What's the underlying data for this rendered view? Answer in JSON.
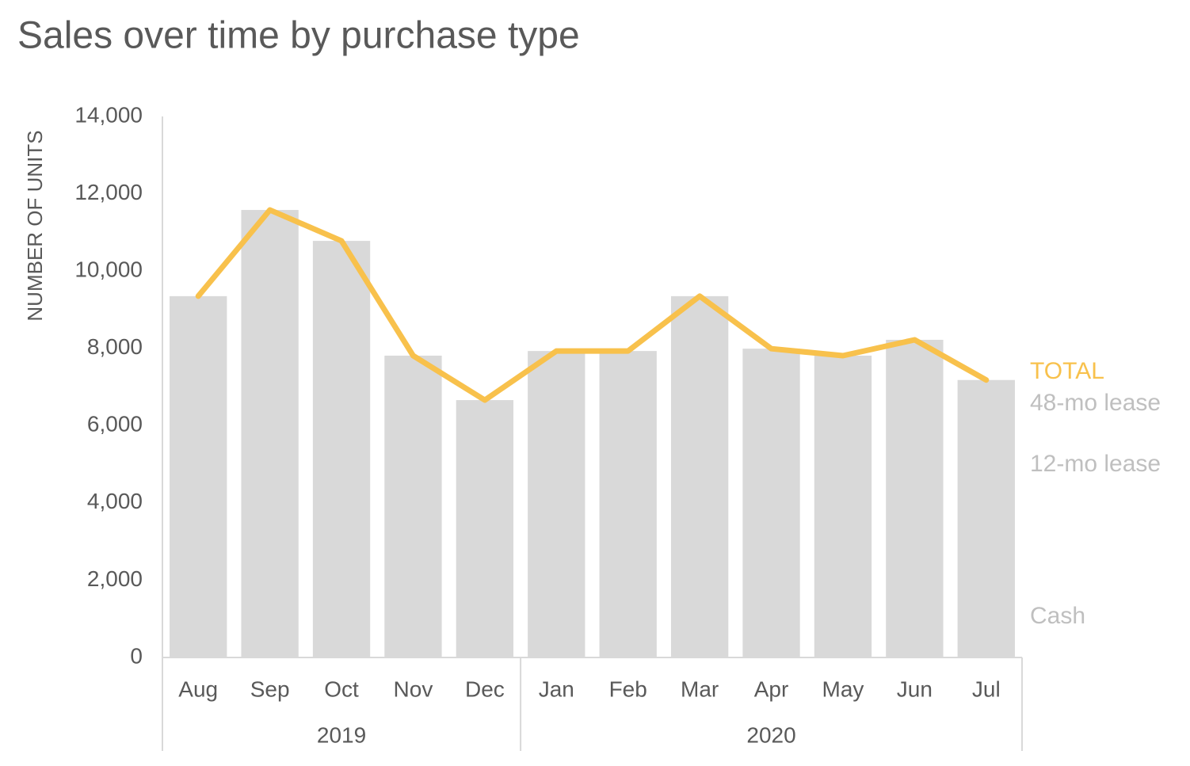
{
  "chart_data": {
    "type": "bar",
    "title": "Sales over time by purchase type",
    "y_label": "NUMBER OF UNITS",
    "categories": [
      "Aug",
      "Sep",
      "Oct",
      "Nov",
      "Dec",
      "Jan",
      "Feb",
      "Mar",
      "Apr",
      "May",
      "Jun",
      "Jul"
    ],
    "years": [
      "2019",
      "2019",
      "2019",
      "2019",
      "2019",
      "2020",
      "2020",
      "2020",
      "2020",
      "2020",
      "2020",
      "2020"
    ],
    "values": [
      9350,
      11580,
      10780,
      7810,
      6660,
      7930,
      7930,
      9350,
      7990,
      7810,
      8220,
      7180
    ],
    "color": "#d9d9d9",
    "line": {
      "name": "TOTAL",
      "color": "#f8c14c"
    },
    "segment_labels": [
      "48-mo lease",
      "12-mo lease",
      "Cash"
    ],
    "segment_label_color": "#bfbfbf",
    "ylim": [
      0,
      14000
    ],
    "yticks": [
      0,
      {
        "value": 2000,
        "label": "2,000"
      },
      {
        "value": 4000,
        "label": "4,000"
      },
      {
        "value": 6000,
        "label": "6,000"
      },
      {
        "value": 8000,
        "label": "8,000"
      },
      {
        "value": 10000,
        "label": "10,000"
      },
      {
        "value": 12000,
        "label": "12,000"
      },
      {
        "value": 14000,
        "label": "14,000"
      }
    ],
    "grid": false
  }
}
